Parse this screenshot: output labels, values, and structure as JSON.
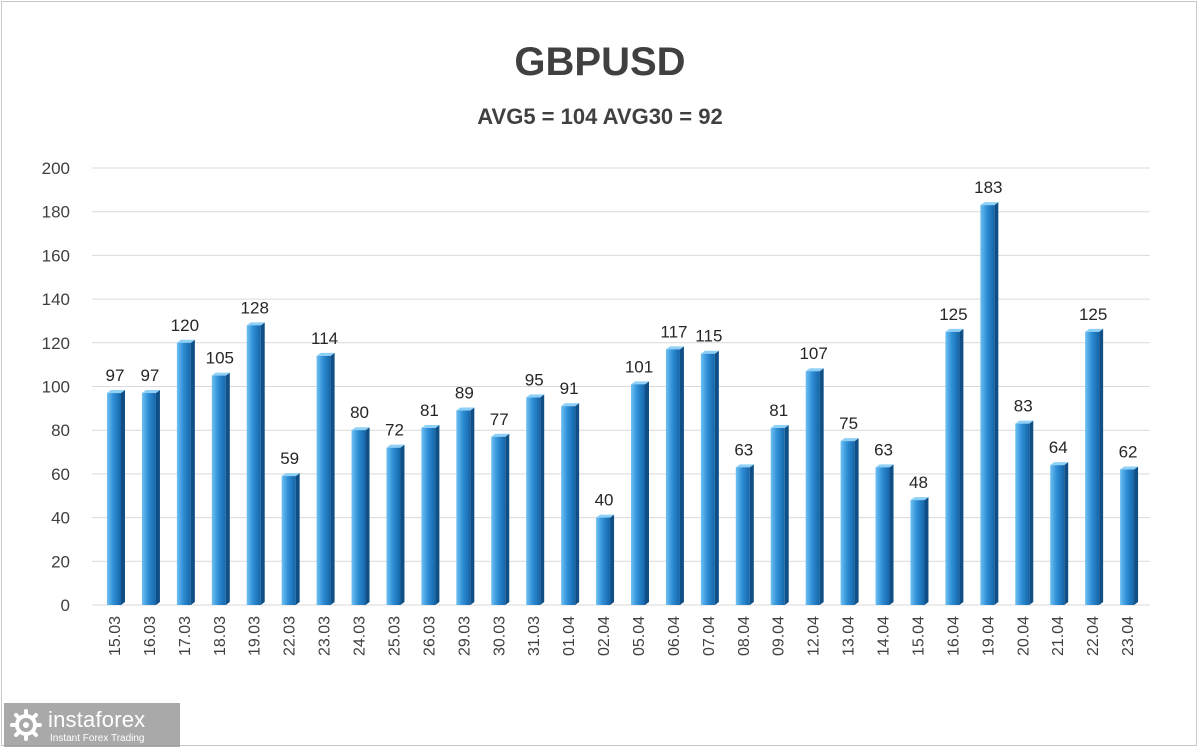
{
  "chart_data": {
    "type": "bar",
    "title": "GBPUSD",
    "subtitle": "AVG5 = 104 AVG30 = 92",
    "categories": [
      "15.03",
      "16.03",
      "17.03",
      "18.03",
      "19.03",
      "22.03",
      "23.03",
      "24.03",
      "25.03",
      "26.03",
      "29.03",
      "30.03",
      "31.03",
      "01.04",
      "02.04",
      "05.04",
      "06.04",
      "07.04",
      "08.04",
      "09.04",
      "12.04",
      "13.04",
      "14.04",
      "15.04",
      "16.04",
      "19.04",
      "20.04",
      "21.04",
      "22.04",
      "23.04"
    ],
    "values": [
      97,
      97,
      120,
      105,
      128,
      59,
      114,
      80,
      72,
      81,
      89,
      77,
      95,
      91,
      40,
      101,
      117,
      115,
      63,
      81,
      107,
      75,
      63,
      48,
      125,
      183,
      83,
      64,
      125,
      62
    ],
    "ylim": [
      0,
      200
    ],
    "yticks": [
      0,
      20,
      40,
      60,
      80,
      100,
      120,
      140,
      160,
      180,
      200
    ],
    "grid": true,
    "bar_color": "#2f8fd6",
    "xlabel": "",
    "ylabel": ""
  },
  "watermark": {
    "brand": "instaforex",
    "tagline": "Instant Forex Trading"
  }
}
